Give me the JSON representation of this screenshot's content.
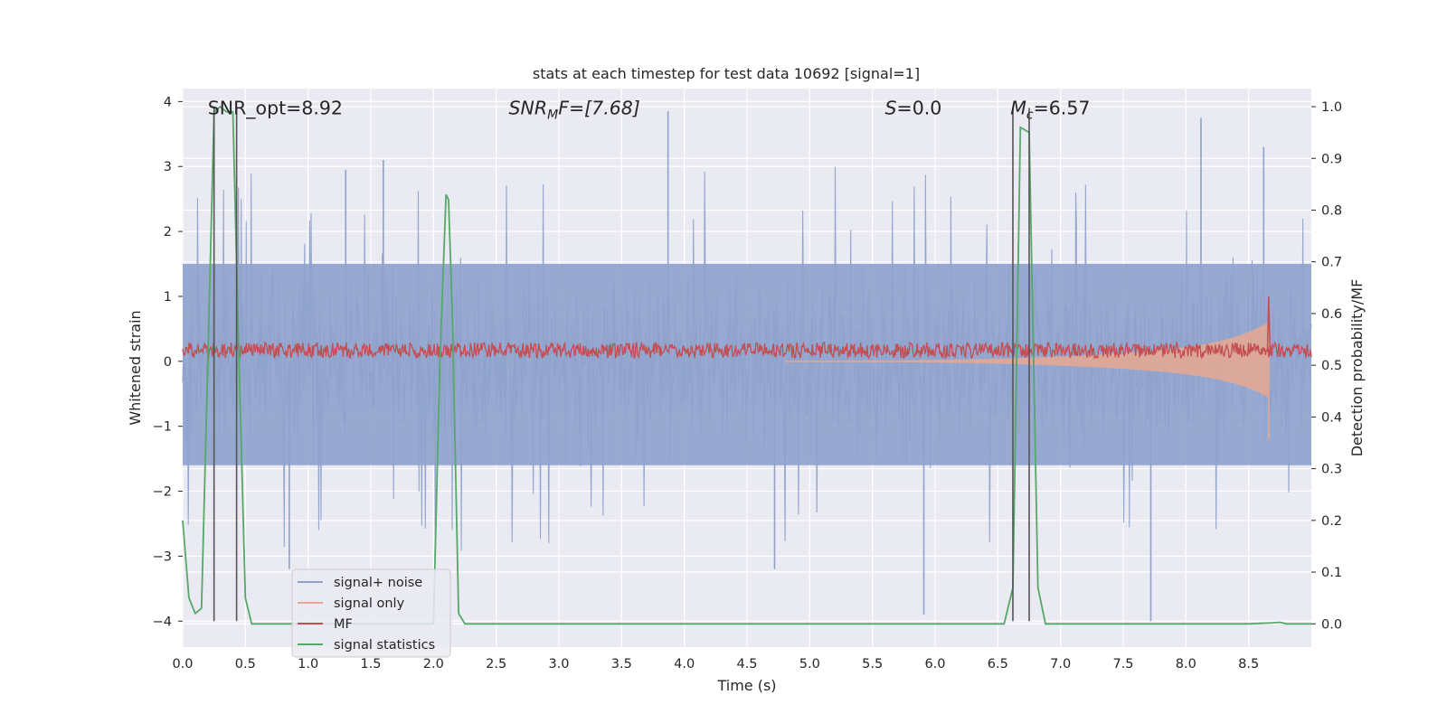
{
  "chart_data": {
    "type": "line",
    "title": "stats at each timestep for test data 10692 [signal=1]",
    "xlabel": "Time (s)",
    "ylabel_left": "Whitened strain",
    "ylabel_right": "Detection probability/MF",
    "xlim": [
      0.0,
      9.0
    ],
    "ylim_left": [
      -4.4,
      4.2
    ],
    "ylim_right": [
      -0.045,
      1.035
    ],
    "grid": true,
    "legend_position": "lower-left",
    "x_ticks": [
      "0.0",
      "0.5",
      "1.0",
      "1.5",
      "2.0",
      "2.5",
      "3.0",
      "3.5",
      "4.0",
      "4.5",
      "5.0",
      "5.5",
      "6.0",
      "6.5",
      "7.0",
      "7.5",
      "8.0",
      "8.5"
    ],
    "y_ticks_left": [
      "4",
      "3",
      "2",
      "1",
      "0",
      "−1",
      "−2",
      "−3",
      "−4"
    ],
    "y_ticks_right": [
      "1.0",
      "0.9",
      "0.8",
      "0.7",
      "0.6",
      "0.5",
      "0.4",
      "0.3",
      "0.2",
      "0.1",
      "0.0"
    ],
    "annotations": [
      {
        "text": "SNR_opt=8.92",
        "italic": false,
        "x": 0.2,
        "y": 3.9
      },
      {
        "text": "SNR",
        "sub": "M",
        "tail": "F=[7.68]",
        "italic": true,
        "x": 2.6,
        "y": 3.9
      },
      {
        "text": "S",
        "tail": "=0.0",
        "italic": true,
        "x": 5.6,
        "y": 3.9
      },
      {
        "text": "M",
        "sub": "c",
        "tail": "=6.57",
        "italic": true,
        "x": 6.6,
        "y": 3.9
      }
    ],
    "vlines": [
      {
        "x": 0.25,
        "ymin": -4.0,
        "ymax": 3.9
      },
      {
        "x": 0.43,
        "ymin": -4.0,
        "ymax": 3.9
      },
      {
        "x": 6.62,
        "ymin": -4.0,
        "ymax": 3.9
      },
      {
        "x": 6.75,
        "ymin": -4.0,
        "ymax": 3.9
      }
    ],
    "series": [
      {
        "name": "signal+ noise",
        "color": "#8ea2cc",
        "axis": "left",
        "kind": "noise",
        "band": [
          -1.6,
          1.5
        ],
        "typical_extremes": [
          -2.4,
          2.4
        ],
        "max_spike": 3.85,
        "min_spike": -4.0
      },
      {
        "name": "signal only",
        "color": "#e8a890",
        "axis": "left",
        "kind": "chirp",
        "start": 4.8,
        "end": 8.66,
        "peak_amplitude": 1.0
      },
      {
        "name": "MF",
        "color": "#c44e52",
        "axis": "left",
        "kind": "noisy-level",
        "mean": 0.17,
        "amplitude": 0.12,
        "spike": {
          "x": 8.66,
          "value": 1.0
        }
      },
      {
        "name": "signal statistics",
        "color": "#55a868",
        "axis": "right",
        "kind": "line",
        "x": [
          0.0,
          0.05,
          0.1,
          0.15,
          0.2,
          0.25,
          0.3,
          0.35,
          0.4,
          0.45,
          0.5,
          0.55,
          0.6,
          0.8,
          1.0,
          1.5,
          2.0,
          2.05,
          2.1,
          2.12,
          2.15,
          2.2,
          2.25,
          2.3,
          2.5,
          3.0,
          4.0,
          5.0,
          6.0,
          6.55,
          6.62,
          6.68,
          6.75,
          6.82,
          6.88,
          7.0,
          7.5,
          8.0,
          8.5,
          8.7,
          8.75,
          8.8,
          8.9,
          9.0
        ],
        "y": [
          0.2,
          0.05,
          0.02,
          0.03,
          0.5,
          0.99,
          1.0,
          0.99,
          0.99,
          0.5,
          0.05,
          0.0,
          0.0,
          0.0,
          0.0,
          0.0,
          0.0,
          0.5,
          0.83,
          0.82,
          0.6,
          0.02,
          0.0,
          0.0,
          0.0,
          0.0,
          0.0,
          0.0,
          0.0,
          0.0,
          0.07,
          0.96,
          0.95,
          0.07,
          0.0,
          0.0,
          0.0,
          0.0,
          0.0,
          0.002,
          0.003,
          0.0,
          0.0,
          0.0
        ]
      }
    ]
  }
}
